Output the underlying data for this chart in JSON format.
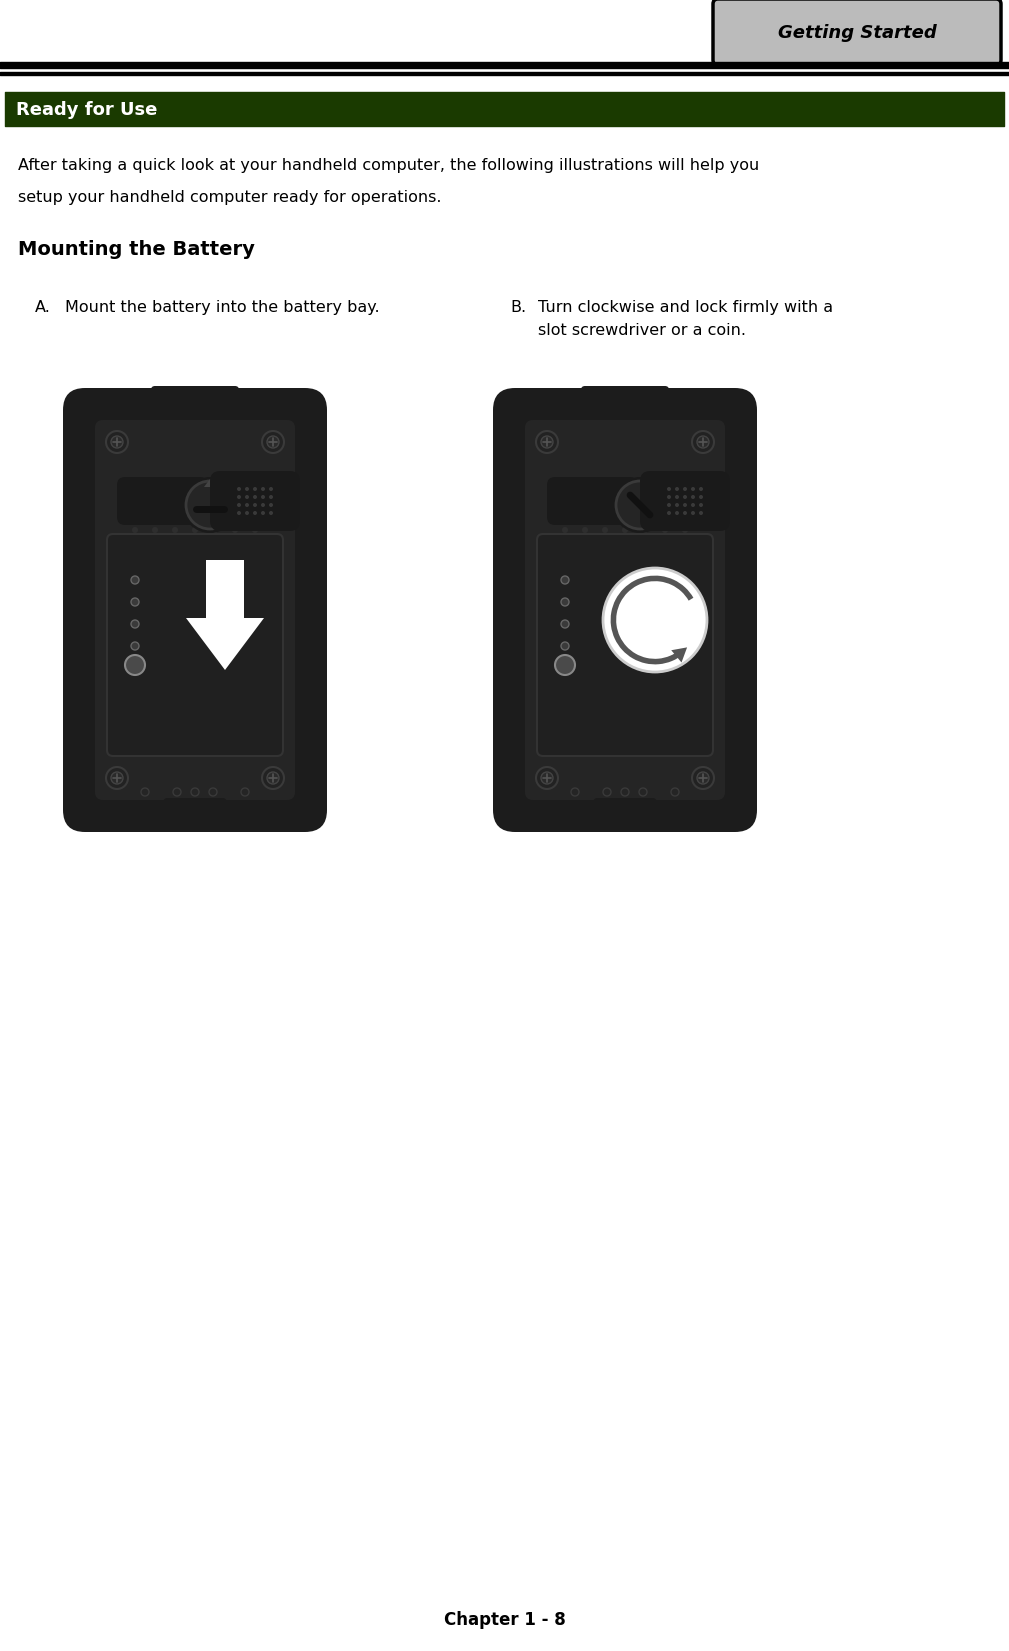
{
  "bg_color": "#ffffff",
  "tab_label": "Getting Started",
  "tab_bg": "#b8b8b8",
  "tab_border": "#000000",
  "header_bg": "#1a3a00",
  "header_text": "Ready for Use",
  "header_text_color": "#ffffff",
  "body_text1": "After taking a quick look at your handheld computer, the following illustrations will help you",
  "body_text2": "setup your handheld computer ready for operations.",
  "section_title": "Mounting the Battery",
  "item_a_label": "A.",
  "item_a_text": "Mount the battery into the battery bay.",
  "item_b_label": "B.",
  "item_b_text1": "Turn clockwise and lock firmly with a",
  "item_b_text2": "slot screwdriver or a coin.",
  "footer_text": "Chapter 1 - 8",
  "figw": 10.09,
  "figh": 16.51,
  "dpi": 100
}
